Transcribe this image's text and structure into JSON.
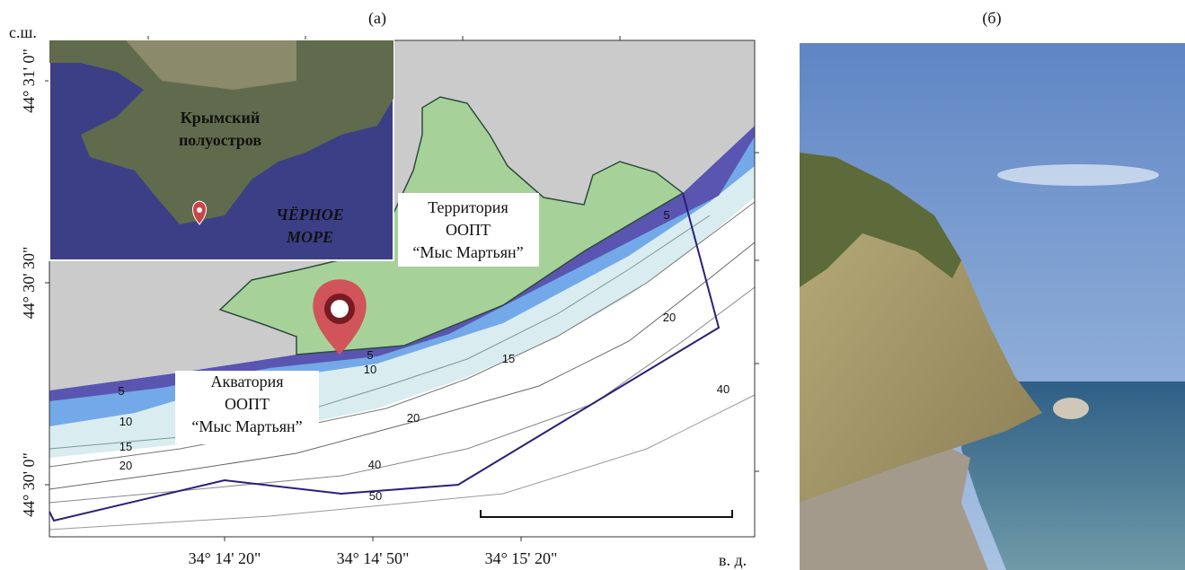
{
  "panel_a": {
    "label": "(а)",
    "lat_unit": "с.ш.",
    "lon_unit": "в. д.",
    "lat_labels": [
      "44° 31' 0\"",
      "44° 30' 30\"",
      "44° 30' 0\""
    ],
    "lon_labels": [
      "34° 14' 20\"",
      "34° 14' 50\"",
      "34° 15' 20\""
    ],
    "inset": {
      "peninsula": [
        "Крымский",
        "полуостров"
      ],
      "sea": [
        "ЧЁРНОЕ",
        "МОРЕ"
      ]
    },
    "territory_label": [
      "Территория",
      "ООПТ",
      "“Мыс Мартьян”"
    ],
    "water_area_label": [
      "Акватория",
      "ООПТ",
      "“Мыс Мартьян”"
    ],
    "depth_labels": [
      5,
      5,
      5,
      10,
      10,
      15,
      15,
      20,
      20,
      20,
      40,
      40,
      50
    ]
  },
  "panel_b": {
    "label": "(б)"
  }
}
